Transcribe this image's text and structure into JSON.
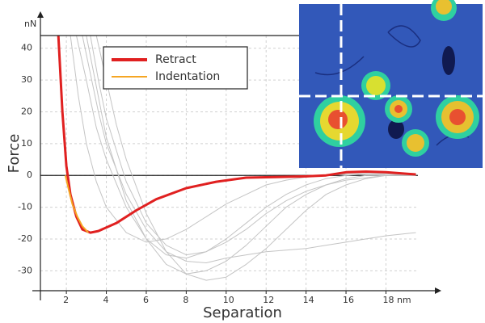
{
  "chart_data": {
    "type": "line",
    "x_label": "Separation",
    "y_label": "Force",
    "y_unit": "nN",
    "xlim": [
      0.7,
      19.6
    ],
    "ylim": [
      -35,
      44
    ],
    "xticks": [
      2,
      4,
      6,
      8,
      10,
      12,
      14,
      16,
      {
        "value": 18,
        "label": "18 nm"
      }
    ],
    "yticks": [
      -30,
      -20,
      -10,
      0,
      10,
      20,
      30,
      40
    ],
    "grid": true,
    "series": [
      {
        "name": "Retract",
        "color": "#e02020",
        "x": [
          1.6,
          1.8,
          2.0,
          2.2,
          2.5,
          2.8,
          3.2,
          3.6,
          4.5,
          5.5,
          6.5,
          8,
          9.5,
          11,
          12.5,
          14,
          15,
          16,
          17,
          18,
          19.5
        ],
        "values": [
          44,
          20,
          3,
          -6,
          -13,
          -17,
          -18,
          -17.5,
          -15,
          -11,
          -7.5,
          -4,
          -2,
          -0.7,
          -0.5,
          -0.3,
          0,
          1,
          1.2,
          1,
          0.3
        ]
      },
      {
        "name": "Indentation",
        "color": "#f5a623",
        "x": [
          1.95,
          2.1,
          2.3,
          2.55,
          2.8,
          3.1
        ],
        "values": [
          0,
          -4,
          -9,
          -13,
          -16,
          -18
        ]
      },
      {
        "color": "#c4c4c4",
        "x": [
          2.5,
          3,
          3.5,
          4,
          5,
          6,
          7,
          8,
          9,
          10,
          11,
          12,
          13,
          14,
          15,
          16,
          17,
          18,
          19.5
        ],
        "values": [
          44,
          30,
          15,
          5,
          -10,
          -20,
          -25,
          -26,
          -24,
          -20,
          -15,
          -10,
          -6,
          -3,
          -1,
          0,
          0.5,
          0.5,
          0
        ]
      },
      {
        "color": "#c4c4c4",
        "x": [
          3,
          3.5,
          4,
          5,
          6,
          7,
          8,
          9,
          10,
          11,
          12,
          13,
          14,
          15,
          16,
          17,
          18,
          19.5
        ],
        "values": [
          44,
          28,
          12,
          -8,
          -20,
          -28,
          -31,
          -30,
          -27,
          -22,
          -16,
          -10,
          -6,
          -3,
          -1,
          0,
          0,
          0
        ]
      },
      {
        "color": "#c4c4c4",
        "x": [
          2.2,
          2.6,
          3,
          3.5,
          4,
          5,
          6,
          7,
          8,
          9,
          10,
          11,
          12,
          13,
          14,
          16,
          18,
          19.5
        ],
        "values": [
          44,
          25,
          10,
          -2,
          -10,
          -18,
          -21,
          -20,
          -17,
          -13,
          -9,
          -6,
          -3,
          -1.5,
          -0.5,
          0.5,
          0.5,
          0
        ]
      },
      {
        "color": "#c4c4c4",
        "x": [
          3.5,
          4,
          4.5,
          5,
          6,
          7,
          8,
          9,
          10,
          11,
          12,
          13,
          14,
          15,
          16,
          17,
          18,
          19.5
        ],
        "values": [
          44,
          30,
          16,
          5,
          -12,
          -24,
          -31,
          -33,
          -32,
          -28,
          -23,
          -17,
          -11,
          -6,
          -3,
          -1,
          0,
          0
        ]
      },
      {
        "color": "#c4c4c4",
        "x": [
          2.8,
          3.2,
          3.6,
          4,
          5,
          6,
          7,
          8,
          9,
          10,
          12,
          14,
          15,
          16,
          17,
          18,
          19.5
        ],
        "values": [
          44,
          32,
          20,
          10,
          -6,
          -17,
          -24,
          -27,
          -27.5,
          -26,
          -24,
          -23,
          -22,
          -21,
          -20,
          -19,
          -18
        ]
      },
      {
        "color": "#c4c4c4",
        "x": [
          3.2,
          3.6,
          4,
          5,
          6,
          7,
          8,
          9,
          10,
          11,
          12,
          13,
          14,
          15,
          16,
          18,
          19.5
        ],
        "values": [
          44,
          30,
          18,
          -2,
          -15,
          -22,
          -25,
          -24,
          -21,
          -17,
          -12,
          -8,
          -5,
          -3,
          -1.5,
          0,
          0
        ]
      }
    ]
  }
}
